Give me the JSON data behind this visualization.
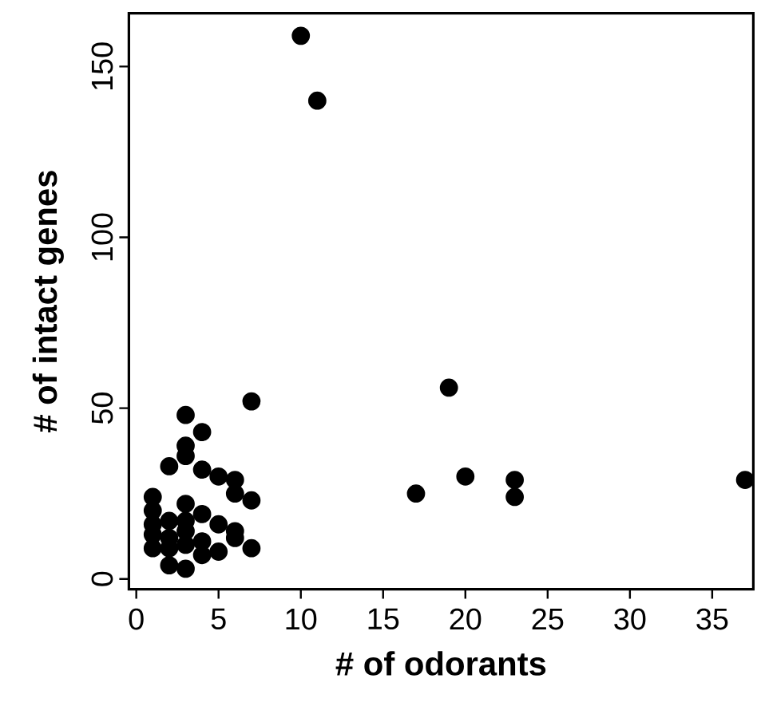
{
  "chart_data": {
    "type": "scatter",
    "xlabel": "# of odorants",
    "ylabel": "# of intact genes",
    "x": [
      10,
      11,
      7,
      19,
      17,
      20,
      23,
      23,
      37,
      3,
      4,
      3,
      3,
      2,
      4,
      5,
      6,
      6,
      7,
      1,
      3,
      1,
      4,
      5,
      1,
      2,
      3,
      6,
      6,
      7,
      5,
      4,
      3,
      2,
      1,
      1,
      2,
      3,
      4,
      3,
      2
    ],
    "values": [
      159,
      140,
      52,
      56,
      25,
      30,
      29,
      24,
      29,
      48,
      43,
      39,
      36,
      33,
      32,
      30,
      29,
      25,
      23,
      24,
      22,
      20,
      19,
      16,
      16,
      17,
      17,
      14,
      12,
      9,
      8,
      7,
      3,
      4,
      9,
      13,
      12,
      10,
      11,
      14,
      9
    ],
    "color": "#000000",
    "xlim": [
      -0.45,
      37.5
    ],
    "ylim": [
      -3,
      165.6
    ],
    "xticks": [
      0,
      5,
      10,
      15,
      20,
      25,
      30,
      35
    ],
    "yticks": [
      0,
      50,
      100,
      150
    ],
    "grid": false
  }
}
